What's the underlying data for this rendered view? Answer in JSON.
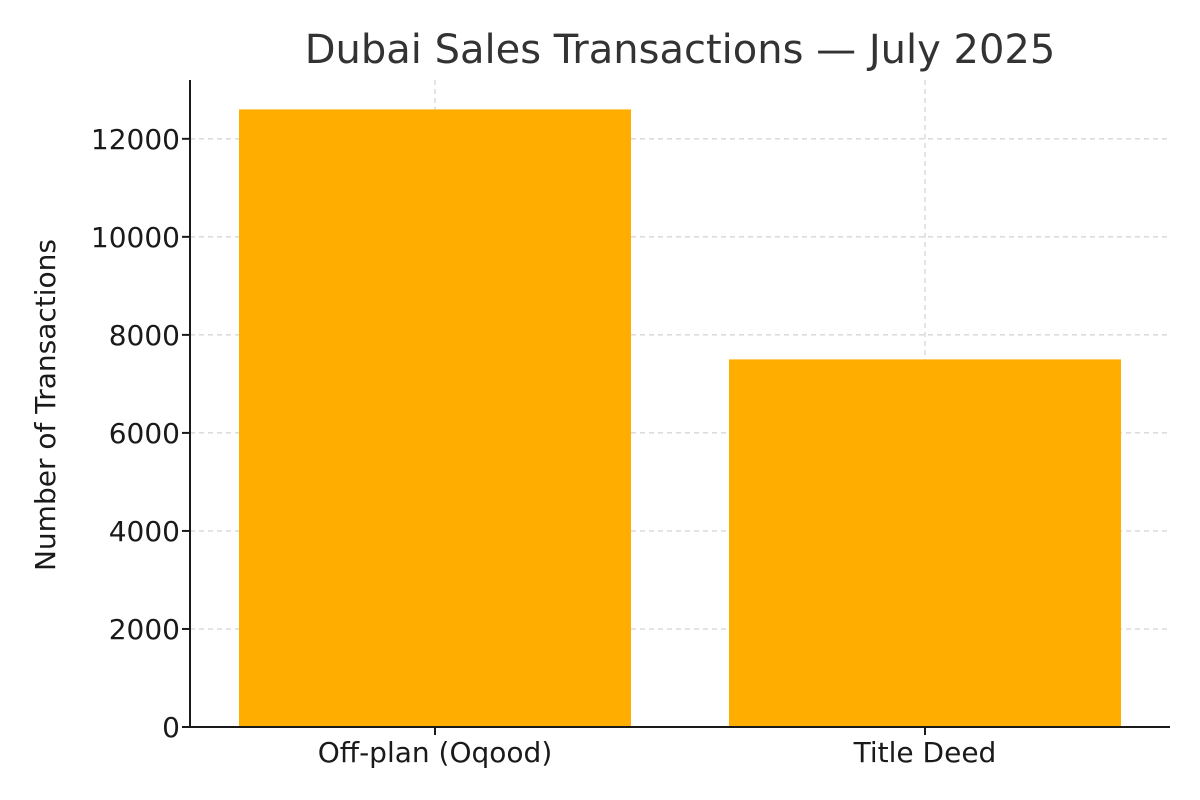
{
  "chart_data": {
    "type": "bar",
    "title": "Dubai Sales Transactions — July 2025",
    "xlabel": "",
    "ylabel": "Number of Transactions",
    "categories": [
      "Off-plan (Oqood)",
      "Title Deed"
    ],
    "values": [
      12600,
      7500
    ],
    "ylim": [
      0,
      13200
    ],
    "yticks": [
      0,
      2000,
      4000,
      6000,
      8000,
      10000,
      12000
    ],
    "grid": true,
    "bar_color": "#FFAE00",
    "legend": "none"
  }
}
